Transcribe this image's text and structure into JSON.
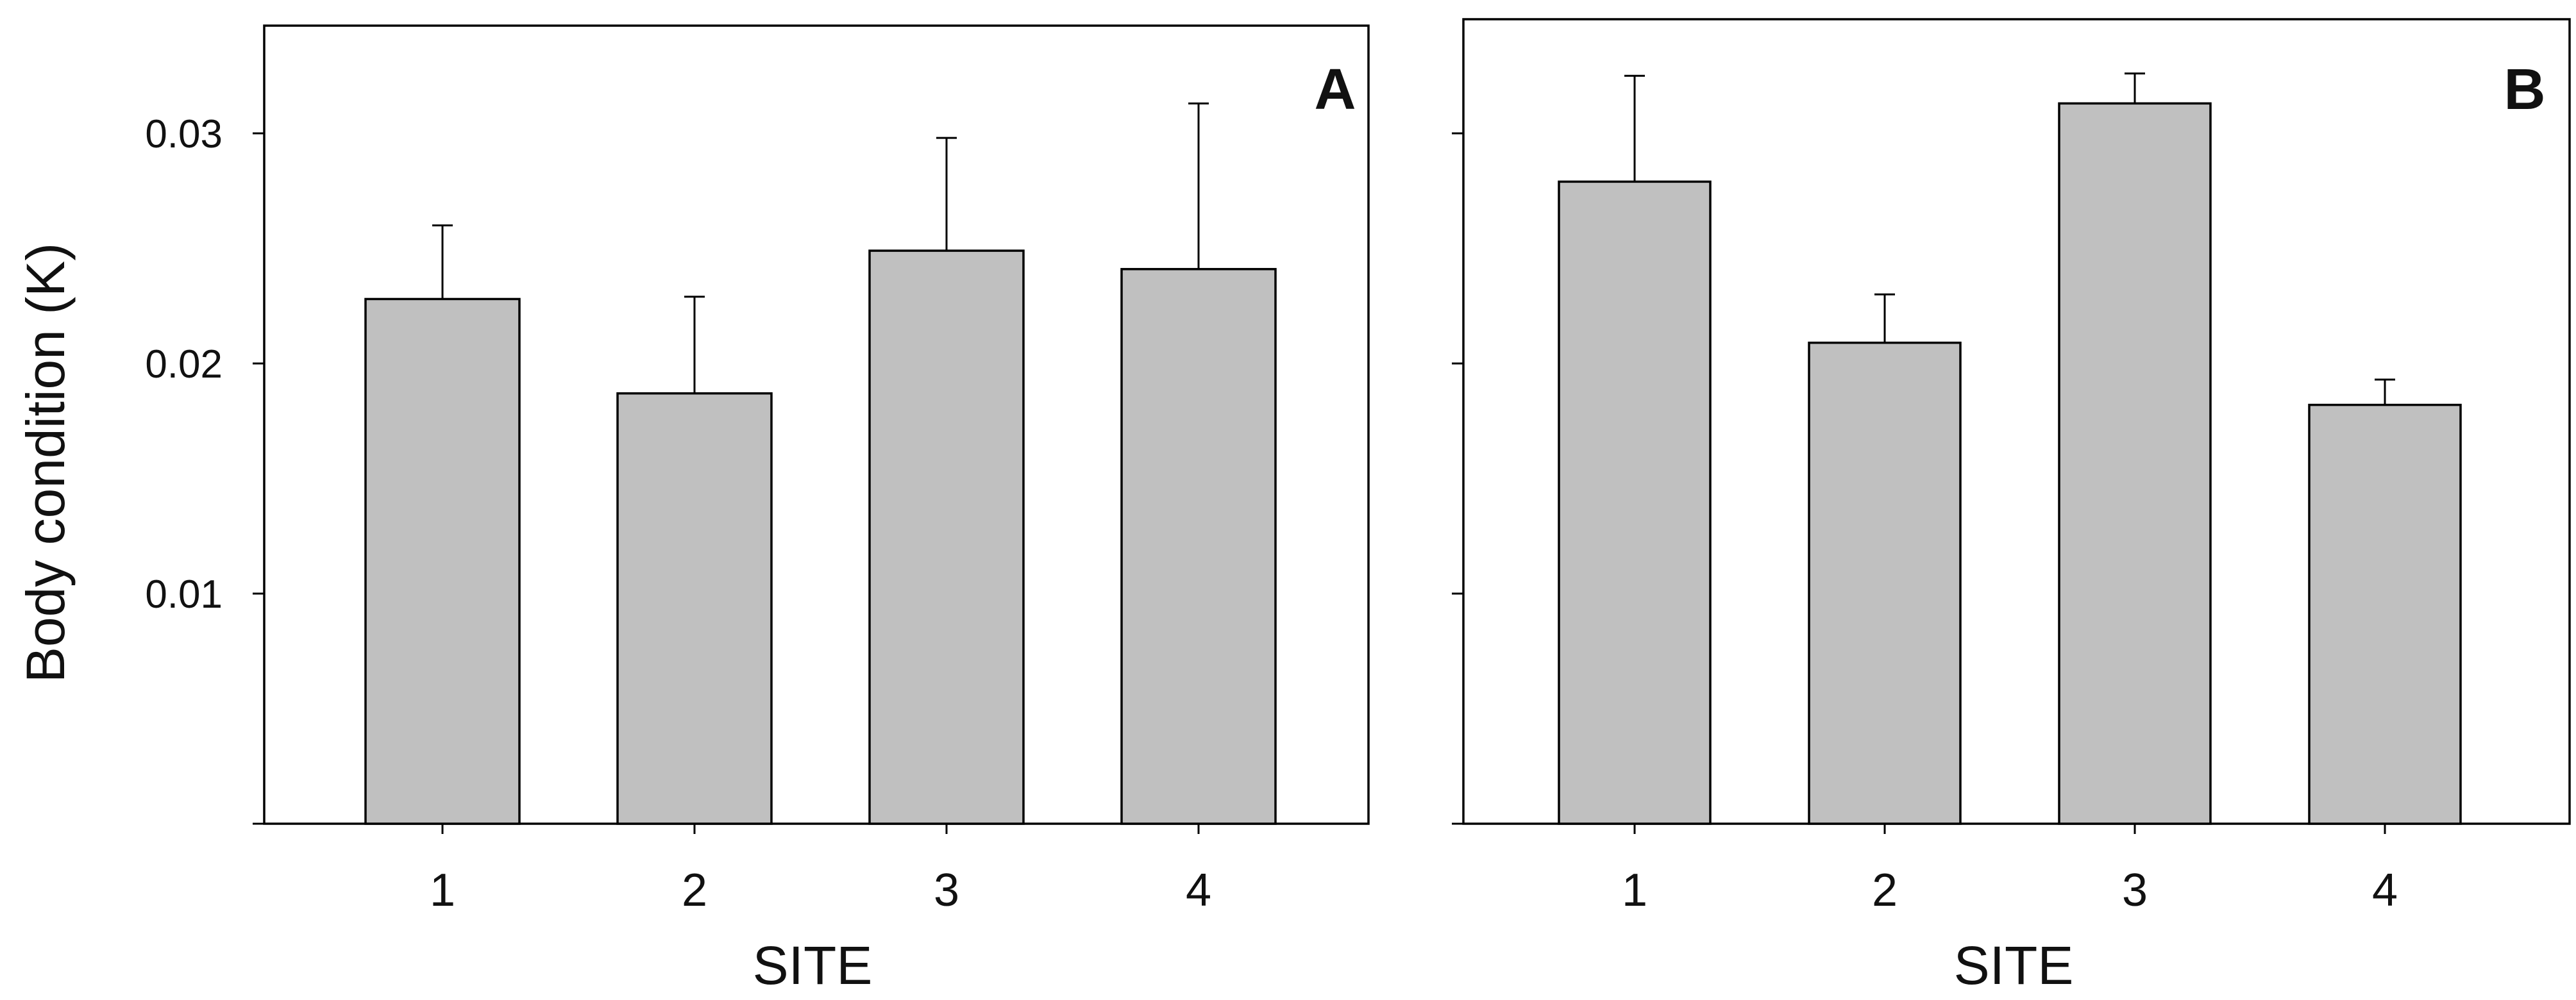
{
  "chart_data": [
    {
      "type": "bar",
      "panel_label": "A",
      "categories": [
        "1",
        "2",
        "3",
        "4"
      ],
      "values": [
        0.0228,
        0.0187,
        0.0249,
        0.0241
      ],
      "error_upper": [
        0.026,
        0.0229,
        0.0298,
        0.0313
      ],
      "ylabel": "Body condition (K)",
      "xlabel": "SITE",
      "ylim": [
        0,
        0.035
      ],
      "yticks": [
        0.01,
        0.02,
        0.03
      ],
      "ytick_labels": [
        "0.01",
        "0.02",
        "0.03"
      ],
      "grid": false,
      "bar_color": "#c0c0c0"
    },
    {
      "type": "bar",
      "panel_label": "B",
      "categories": [
        "1",
        "2",
        "3",
        "4"
      ],
      "values": [
        0.0279,
        0.0209,
        0.0313,
        0.0182
      ],
      "error_upper": [
        0.0325,
        0.023,
        0.0326,
        0.0193
      ],
      "ylabel": "",
      "xlabel": "SITE",
      "ylim": [
        0,
        0.035
      ],
      "yticks": [
        0.01,
        0.02,
        0.03
      ],
      "ytick_labels": [
        "",
        "",
        ""
      ],
      "grid": false,
      "bar_color": "#c0c0c0"
    }
  ]
}
